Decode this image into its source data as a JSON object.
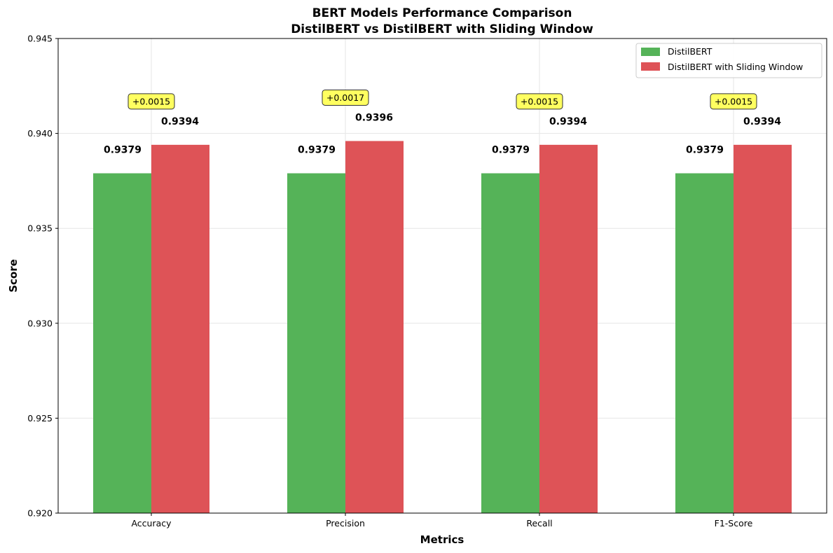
{
  "chart_data": {
    "type": "bar",
    "title": "BERT Models Performance Comparison",
    "subtitle": "DistilBERT vs DistilBERT with Sliding Window",
    "xlabel": "Metrics",
    "ylabel": "Score",
    "categories": [
      "Accuracy",
      "Precision",
      "Recall",
      "F1-Score"
    ],
    "series": [
      {
        "name": "DistilBERT",
        "color": "#55b358",
        "values": [
          0.9379,
          0.9379,
          0.9379,
          0.9379
        ],
        "labels": [
          "0.9379",
          "0.9379",
          "0.9379",
          "0.9379"
        ]
      },
      {
        "name": "DistilBERT with Sliding Window",
        "color": "#de5357",
        "values": [
          0.9394,
          0.9396,
          0.9394,
          0.9394
        ],
        "labels": [
          "0.9394",
          "0.9396",
          "0.9394",
          "0.9394"
        ]
      }
    ],
    "differences": [
      "+0.0015",
      "+0.0017",
      "+0.0015",
      "+0.0015"
    ],
    "annotation_color": "#ffff44",
    "ylim": [
      0.92,
      0.945
    ],
    "yticks": [
      "0.920",
      "0.925",
      "0.930",
      "0.935",
      "0.940",
      "0.945"
    ],
    "grid": true,
    "legend_position": "top-right"
  }
}
